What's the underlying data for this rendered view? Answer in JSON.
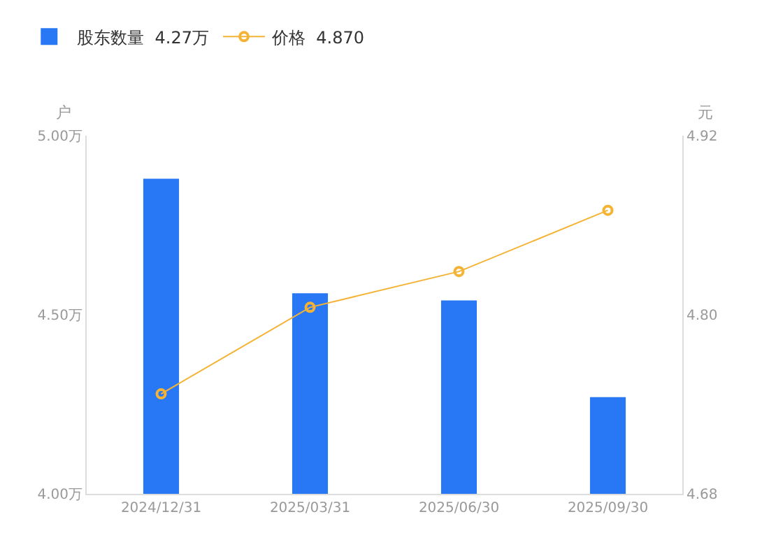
{
  "chart_data": {
    "type": "bar",
    "categories": [
      "2024/12/31",
      "2025/03/31",
      "2025/06/30",
      "2025/09/30"
    ],
    "ylabel": "户",
    "y2label": "元",
    "series": [
      {
        "name": "股东数量  4.27万",
        "color": "#2878f5",
        "values": [
          4.88,
          4.56,
          4.54,
          4.27
        ]
      },
      {
        "name": "价格  4.870",
        "type": "line",
        "axis": "y2",
        "color": "#f5b335",
        "marker": "circle",
        "values": [
          4.747,
          4.805,
          4.829,
          4.87
        ]
      }
    ],
    "ylim": [
      4.0,
      5.0
    ],
    "yticks": [
      {
        "value": 4.0,
        "label": "4.00万"
      },
      {
        "value": 4.5,
        "label": "4.50万"
      },
      {
        "value": 5.0,
        "label": "5.00万"
      }
    ],
    "y2lim": [
      4.68,
      4.92
    ],
    "y2ticks": [
      {
        "value": 4.68,
        "label": "4.68"
      },
      {
        "value": 4.8,
        "label": "4.80"
      },
      {
        "value": 4.92,
        "label": "4.92"
      }
    ],
    "grid": false,
    "legend": "top left"
  }
}
